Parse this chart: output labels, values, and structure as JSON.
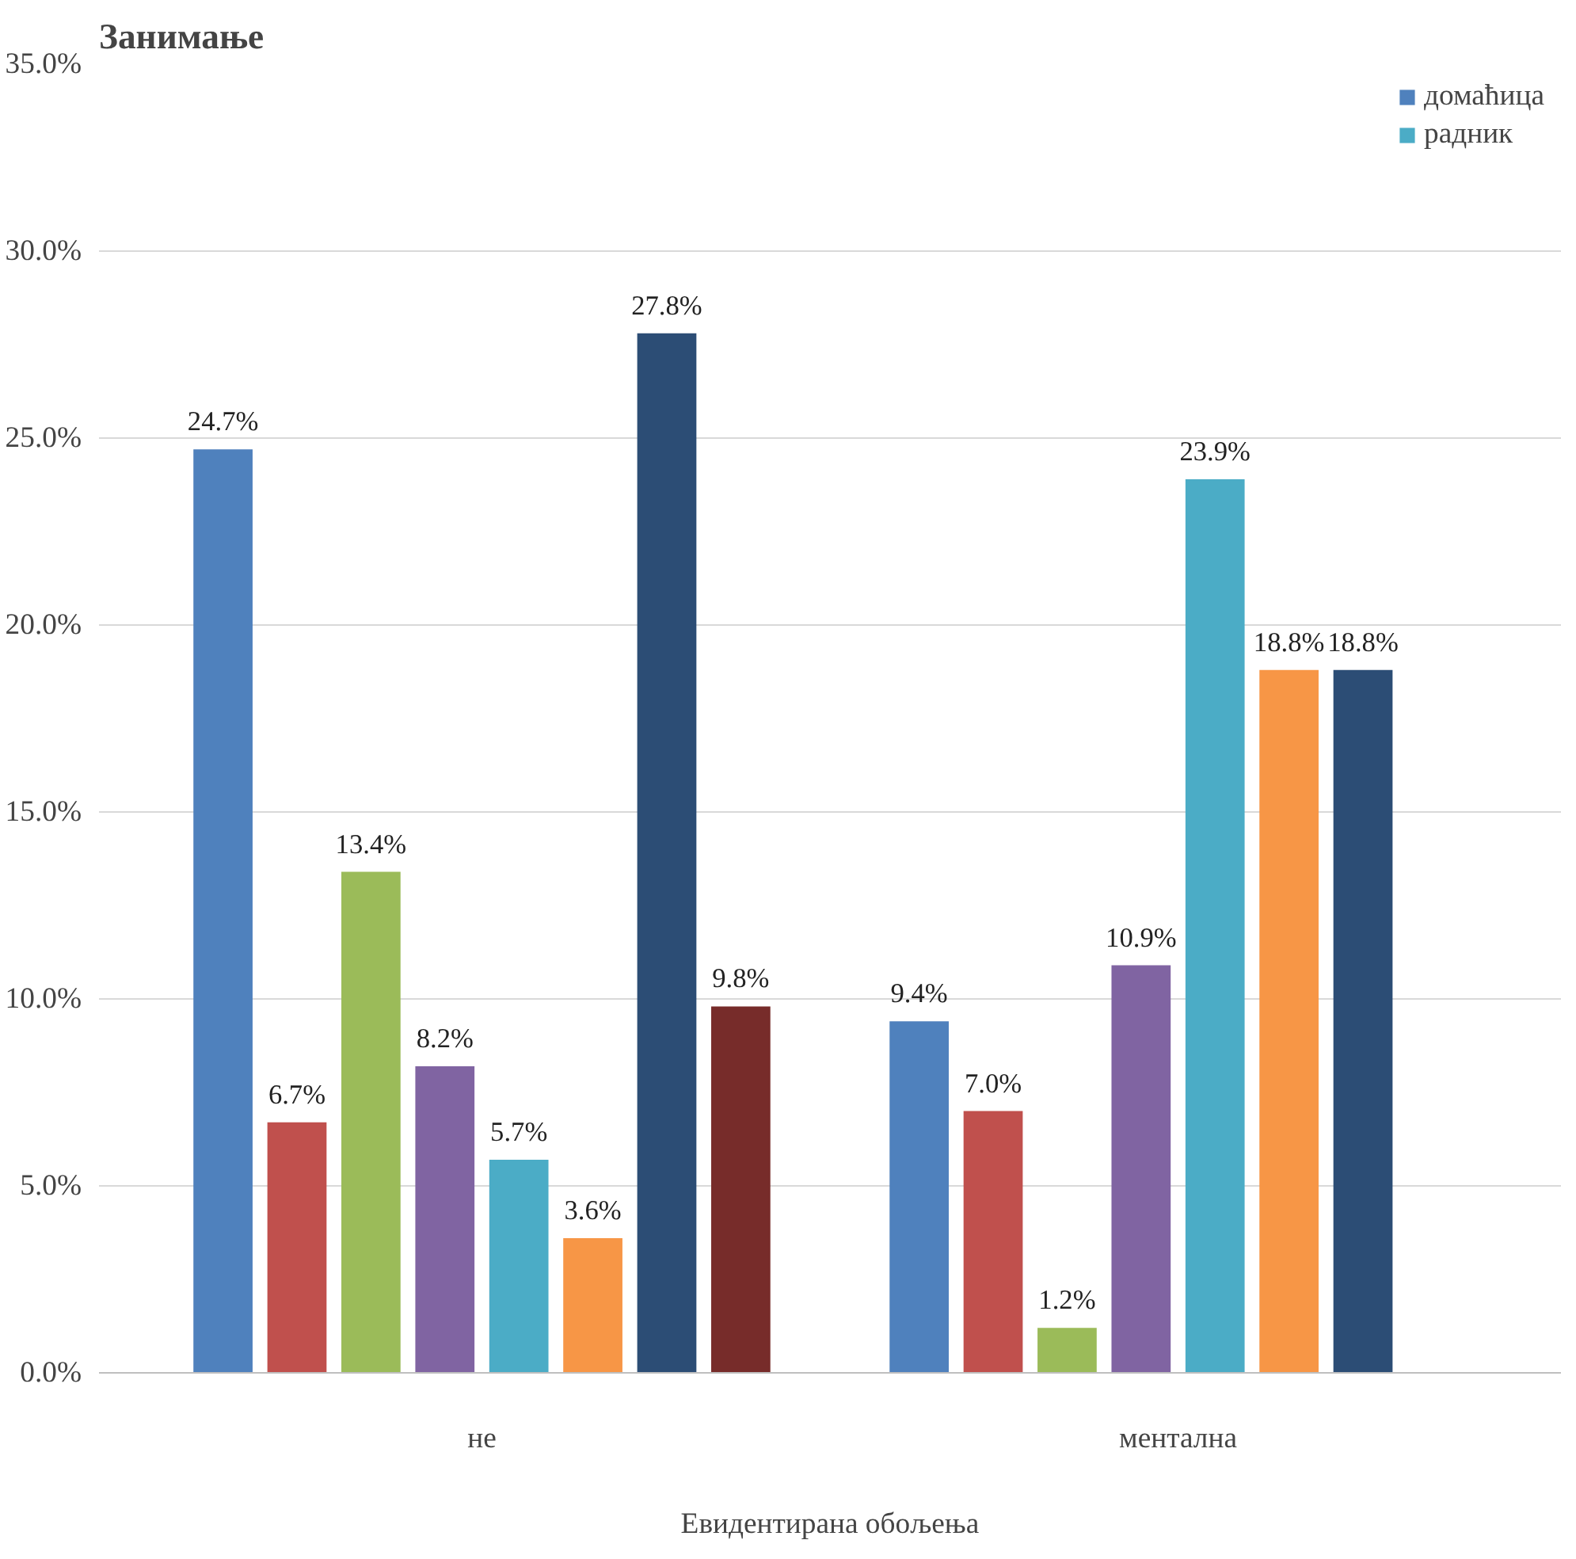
{
  "chart_data": {
    "type": "bar",
    "title": "Занимање",
    "xlabel": "Евидентирана обољења",
    "categories": [
      "не",
      "ментална"
    ],
    "series": [
      {
        "name": "домаћица",
        "color": "#4f81bd",
        "values": [
          24.7,
          9.4
        ],
        "value_labels": [
          "24.7%",
          "9.4%"
        ]
      },
      {
        "color": "#c0504d",
        "values": [
          6.7,
          7.0
        ],
        "value_labels": [
          "6.7%",
          "7.0%"
        ]
      },
      {
        "color": "#9bbb59",
        "values": [
          13.4,
          1.2
        ],
        "value_labels": [
          "13.4%",
          "1.2%"
        ]
      },
      {
        "color": "#8064a2",
        "values": [
          8.2,
          10.9
        ],
        "value_labels": [
          "8.2%",
          "10.9%"
        ]
      },
      {
        "name": "радник",
        "color": "#4bacc6",
        "values": [
          5.7,
          23.9
        ],
        "value_labels": [
          "5.7%",
          "23.9%"
        ]
      },
      {
        "color": "#f79646",
        "values": [
          3.6,
          18.8
        ],
        "value_labels": [
          "3.6%",
          "18.8%"
        ]
      },
      {
        "color": "#2c4d75",
        "values": [
          27.8,
          18.8
        ],
        "value_labels": [
          "27.8%",
          "18.8%"
        ]
      },
      {
        "color": "#772c2a",
        "values": [
          9.8,
          null
        ],
        "value_labels": [
          "9.8%",
          null
        ]
      }
    ],
    "ylim": [
      0,
      35
    ],
    "yticks": [
      {
        "value": 0,
        "label": "0.0%"
      },
      {
        "value": 5,
        "label": "5.0%"
      },
      {
        "value": 10,
        "label": "10.0%"
      },
      {
        "value": 15,
        "label": "15.0%"
      },
      {
        "value": 20,
        "label": "20.0%"
      },
      {
        "value": 25,
        "label": "25.0%"
      },
      {
        "value": 30,
        "label": "30.0%"
      },
      {
        "value": 35,
        "label": "35.0%"
      }
    ],
    "grid": "y",
    "legend": "top right"
  }
}
